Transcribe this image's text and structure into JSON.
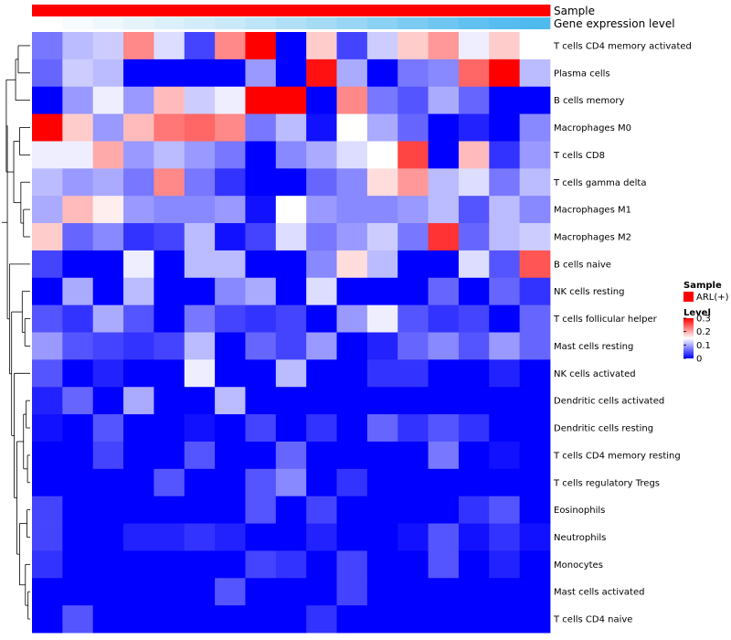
{
  "chart_data": {
    "type": "heatmap",
    "title": "",
    "rows": [
      "T cells CD4 memory activated",
      "Plasma cells",
      "B cells memory",
      "Macrophages M0",
      "T cells CD8",
      "T cells gamma delta",
      "Macrophages M1",
      "Macrophages M2",
      "B cells naive",
      "NK cells resting",
      "T cells follicular helper",
      "Mast cells resting",
      "NK cells activated",
      "Dendritic cells activated",
      "Dendritic cells resting",
      "T cells CD4 memory resting",
      "T cells regulatory  Tregs",
      "Eosinophils",
      "Neutrophils",
      "Monocytes",
      "Mast cells activated",
      "T cells CD4 naive"
    ],
    "values": [
      [
        0.07,
        0.11,
        0.12,
        0.22,
        0.13,
        0.04,
        0.22,
        0.3,
        0.0,
        0.18,
        0.04,
        0.12,
        0.18,
        0.21,
        0.14,
        0.18,
        0.15
      ],
      [
        0.06,
        0.12,
        0.11,
        0.0,
        0.0,
        0.0,
        0.0,
        0.09,
        0.0,
        0.29,
        0.1,
        0.0,
        0.07,
        0.08,
        0.24,
        0.3,
        0.11
      ],
      [
        0.0,
        0.09,
        0.14,
        0.09,
        0.19,
        0.12,
        0.14,
        0.3,
        0.3,
        0.0,
        0.22,
        0.07,
        0.05,
        0.1,
        0.06,
        0.0,
        0.0
      ],
      [
        0.3,
        0.18,
        0.09,
        0.19,
        0.23,
        0.24,
        0.22,
        0.07,
        0.11,
        0.01,
        0.15,
        0.1,
        0.06,
        0.0,
        0.02,
        0.0,
        0.08
      ],
      [
        0.14,
        0.14,
        0.2,
        0.09,
        0.11,
        0.09,
        0.07,
        0.0,
        0.08,
        0.1,
        0.13,
        0.15,
        0.26,
        0.0,
        0.19,
        0.03,
        0.09
      ],
      [
        0.11,
        0.09,
        0.1,
        0.07,
        0.22,
        0.07,
        0.03,
        0.0,
        0.0,
        0.06,
        0.08,
        0.17,
        0.21,
        0.11,
        0.13,
        0.07,
        0.11
      ],
      [
        0.1,
        0.19,
        0.16,
        0.09,
        0.08,
        0.08,
        0.09,
        0.01,
        0.15,
        0.09,
        0.08,
        0.08,
        0.09,
        0.11,
        0.05,
        0.11,
        0.08
      ],
      [
        0.18,
        0.06,
        0.08,
        0.03,
        0.04,
        0.11,
        0.01,
        0.04,
        0.13,
        0.07,
        0.09,
        0.12,
        0.07,
        0.27,
        0.06,
        0.11,
        0.12
      ],
      [
        0.04,
        0.0,
        0.0,
        0.14,
        0.0,
        0.11,
        0.11,
        0.0,
        0.0,
        0.08,
        0.17,
        0.11,
        0.0,
        0.0,
        0.13,
        0.05,
        0.25
      ],
      [
        0.0,
        0.1,
        0.0,
        0.11,
        0.0,
        0.0,
        0.08,
        0.1,
        0.0,
        0.13,
        0.0,
        0.0,
        0.0,
        0.06,
        0.0,
        0.06,
        0.03
      ],
      [
        0.05,
        0.03,
        0.1,
        0.05,
        0.0,
        0.07,
        0.04,
        0.03,
        0.04,
        0.0,
        0.09,
        0.14,
        0.05,
        0.03,
        0.04,
        0.0,
        0.06
      ],
      [
        0.09,
        0.05,
        0.04,
        0.03,
        0.04,
        0.11,
        0.0,
        0.06,
        0.04,
        0.09,
        0.0,
        0.02,
        0.06,
        0.08,
        0.05,
        0.09,
        0.06
      ],
      [
        0.05,
        0.0,
        0.02,
        0.0,
        0.0,
        0.14,
        0.0,
        0.0,
        0.11,
        0.0,
        0.0,
        0.03,
        0.03,
        0.0,
        0.0,
        0.02,
        0.0
      ],
      [
        0.02,
        0.06,
        0.0,
        0.1,
        0.0,
        0.0,
        0.11,
        0.0,
        0.0,
        0.0,
        0.0,
        0.0,
        0.0,
        0.0,
        0.0,
        0.0,
        0.0
      ],
      [
        0.01,
        0.0,
        0.05,
        0.0,
        0.0,
        0.01,
        0.0,
        0.04,
        0.0,
        0.03,
        0.0,
        0.06,
        0.03,
        0.05,
        0.03,
        0.0,
        0.0
      ],
      [
        0.0,
        0.0,
        0.04,
        0.0,
        0.0,
        0.05,
        0.0,
        0.0,
        0.06,
        0.0,
        0.0,
        0.0,
        0.0,
        0.07,
        0.0,
        0.01,
        0.0
      ],
      [
        0.0,
        0.0,
        0.0,
        0.0,
        0.05,
        0.0,
        0.0,
        0.05,
        0.08,
        0.0,
        0.03,
        0.0,
        0.0,
        0.0,
        0.0,
        0.0,
        0.0
      ],
      [
        0.04,
        0.0,
        0.0,
        0.0,
        0.0,
        0.0,
        0.0,
        0.05,
        0.0,
        0.04,
        0.0,
        0.0,
        0.0,
        0.0,
        0.03,
        0.05,
        0.0
      ],
      [
        0.04,
        0.0,
        0.0,
        0.02,
        0.02,
        0.03,
        0.02,
        0.0,
        0.0,
        0.02,
        0.0,
        0.0,
        0.01,
        0.05,
        0.01,
        0.03,
        0.01
      ],
      [
        0.03,
        0.0,
        0.0,
        0.0,
        0.0,
        0.0,
        0.0,
        0.04,
        0.03,
        0.0,
        0.04,
        0.0,
        0.0,
        0.05,
        0.0,
        0.02,
        0.0
      ],
      [
        0.0,
        0.0,
        0.0,
        0.0,
        0.0,
        0.0,
        0.05,
        0.0,
        0.0,
        0.0,
        0.04,
        0.0,
        0.0,
        0.0,
        0.0,
        0.0,
        0.0
      ],
      [
        0.0,
        0.05,
        0.0,
        0.0,
        0.0,
        0.0,
        0.0,
        0.0,
        0.0,
        0.03,
        0.0,
        0.0,
        0.0,
        0.0,
        0.0,
        0.0,
        0.0
      ]
    ],
    "annotations": [
      {
        "label": "Sample",
        "colors": [
          "#ff0000",
          "#ff0000",
          "#ff0000",
          "#ff0000",
          "#ff0000",
          "#ff0000",
          "#ff0000",
          "#ff0000",
          "#ff0000",
          "#ff0000",
          "#ff0000",
          "#ff0000",
          "#ff0000",
          "#ff0000",
          "#ff0000",
          "#ff0000",
          "#ff0000"
        ]
      },
      {
        "label": "Gene expression level",
        "colors": [
          "#ffffff",
          "#f6fbfd",
          "#eef7fc",
          "#e6f3fb",
          "#dbf0fa",
          "#d3ecf9",
          "#c9e9f8",
          "#bde4f7",
          "#b1e0f6",
          "#a5dbf5",
          "#98d6f4",
          "#8ad1f3",
          "#7ccbf2",
          "#6ec6f1",
          "#61c1f0",
          "#57bdef",
          "#4fbaee"
        ]
      }
    ],
    "legends": {
      "sample": {
        "title": "Sample",
        "entries": [
          {
            "label": "ARL(+)",
            "color": "#ff0000"
          }
        ]
      },
      "level": {
        "title": "Level",
        "ticks": [
          0.3,
          0.2,
          0.1,
          0
        ],
        "tick_labels": [
          "0.3",
          "0.2",
          "0.1",
          "0"
        ],
        "range": [
          0,
          0.3
        ]
      }
    },
    "colors": {
      "low": "#0000ff",
      "mid": "#ffffff",
      "high": "#ff0000"
    },
    "dendrogram": "row",
    "xlabel": "",
    "ylabel": ""
  }
}
